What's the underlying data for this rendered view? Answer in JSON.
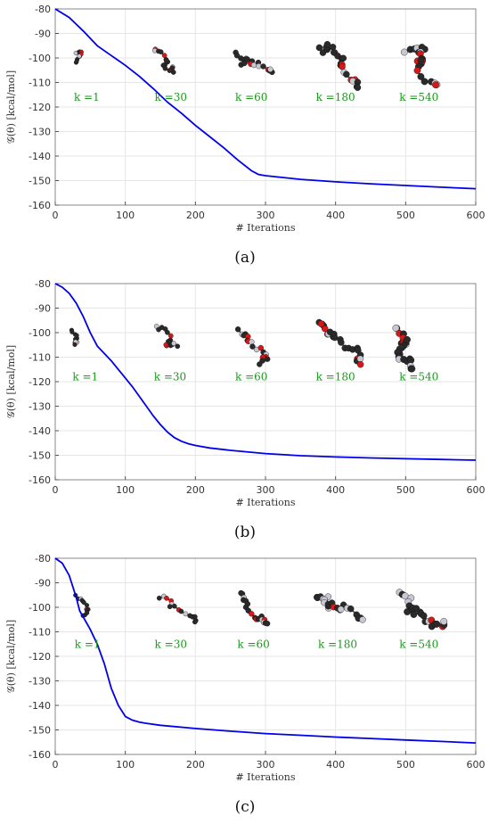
{
  "chart_data": [
    {
      "type": "line",
      "panel_label": "(a)",
      "xlabel": "# Iterations",
      "ylabel": "𝒢(θ) [kcal/mol]",
      "xlim": [
        0,
        600
      ],
      "ylim": [
        -160,
        -80
      ],
      "xticks": [
        0,
        100,
        200,
        300,
        400,
        500,
        600
      ],
      "yticks": [
        -80,
        -90,
        -100,
        -110,
        -120,
        -130,
        -140,
        -150,
        -160
      ],
      "grid": true,
      "series": [
        {
          "color": "#0000ee",
          "x": [
            0,
            20,
            40,
            60,
            80,
            100,
            120,
            140,
            160,
            180,
            200,
            220,
            240,
            260,
            280,
            290,
            300,
            350,
            400,
            450,
            500,
            550,
            600
          ],
          "y": [
            -80,
            -83.5,
            -89,
            -95,
            -99,
            -103,
            -107.5,
            -112.5,
            -118,
            -122.5,
            -127.5,
            -132,
            -136.5,
            -141.5,
            -146,
            -147.5,
            -148,
            -149.5,
            -150.5,
            -151.3,
            -152,
            -152.7,
            -153.3
          ]
        }
      ],
      "annotations": [
        {
          "text": "k =1",
          "x": 78,
          "y": -116
        },
        {
          "text": "k =30",
          "x": 198,
          "y": -116
        },
        {
          "text": "k =60",
          "x": 313,
          "y": -116
        },
        {
          "text": "k =180",
          "x": 433,
          "y": -116
        },
        {
          "text": "k =540",
          "x": 552,
          "y": -116
        }
      ]
    },
    {
      "type": "line",
      "panel_label": "(b)",
      "xlabel": "# Iterations",
      "ylabel": "𝒢(θ) [kcal/mol]",
      "xlim": [
        0,
        600
      ],
      "ylim": [
        -160,
        -80
      ],
      "xticks": [
        0,
        100,
        200,
        300,
        400,
        500,
        600
      ],
      "yticks": [
        -80,
        -90,
        -100,
        -110,
        -120,
        -130,
        -140,
        -150,
        -160
      ],
      "grid": true,
      "series": [
        {
          "color": "#0000ee",
          "x": [
            0,
            10,
            20,
            30,
            40,
            50,
            60,
            70,
            80,
            90,
            100,
            110,
            120,
            130,
            140,
            150,
            160,
            170,
            180,
            190,
            200,
            220,
            250,
            300,
            350,
            400,
            450,
            500,
            550,
            600
          ],
          "y": [
            -80,
            -81.5,
            -84,
            -88,
            -93.5,
            -100,
            -105.5,
            -108.5,
            -111.5,
            -115,
            -118.5,
            -122,
            -126,
            -130,
            -134,
            -137.5,
            -140.5,
            -142.8,
            -144.3,
            -145.3,
            -146,
            -147,
            -148,
            -149.3,
            -150.2,
            -150.7,
            -151.1,
            -151.4,
            -151.7,
            -152
          ]
        }
      ],
      "annotations": [
        {
          "text": "k =1",
          "x": 76,
          "y": -118
        },
        {
          "text": "k =30",
          "x": 197,
          "y": -118
        },
        {
          "text": "k =60",
          "x": 313,
          "y": -118
        },
        {
          "text": "k =180",
          "x": 433,
          "y": -118
        },
        {
          "text": "k =540",
          "x": 552,
          "y": -118
        }
      ]
    },
    {
      "type": "line",
      "panel_label": "(c)",
      "xlabel": "# Iterations",
      "ylabel": "𝒢(θ) [kcal/mol]",
      "xlim": [
        0,
        600
      ],
      "ylim": [
        -160,
        -80
      ],
      "xticks": [
        0,
        100,
        200,
        300,
        400,
        500,
        600
      ],
      "yticks": [
        -80,
        -90,
        -100,
        -110,
        -120,
        -130,
        -140,
        -150,
        -160
      ],
      "grid": true,
      "series": [
        {
          "color": "#0000ee",
          "x": [
            0,
            10,
            20,
            30,
            35,
            40,
            50,
            60,
            70,
            80,
            90,
            100,
            110,
            120,
            130,
            150,
            200,
            250,
            300,
            350,
            400,
            450,
            500,
            550,
            600
          ],
          "y": [
            -80,
            -82,
            -87,
            -96,
            -101.5,
            -104,
            -109,
            -115,
            -123,
            -133,
            -140,
            -144.5,
            -146,
            -146.8,
            -147.3,
            -148.1,
            -149.4,
            -150.5,
            -151.5,
            -152.2,
            -152.9,
            -153.5,
            -154.1,
            -154.7,
            -155.3
          ]
        }
      ],
      "annotations": [
        {
          "text": "k =1",
          "x": 79,
          "y": -115
        },
        {
          "text": "k =30",
          "x": 198,
          "y": -115
        },
        {
          "text": "k =60",
          "x": 316,
          "y": -115
        },
        {
          "text": "k =180",
          "x": 436,
          "y": -115
        },
        {
          "text": "k =540",
          "x": 552,
          "y": -115
        }
      ]
    }
  ]
}
